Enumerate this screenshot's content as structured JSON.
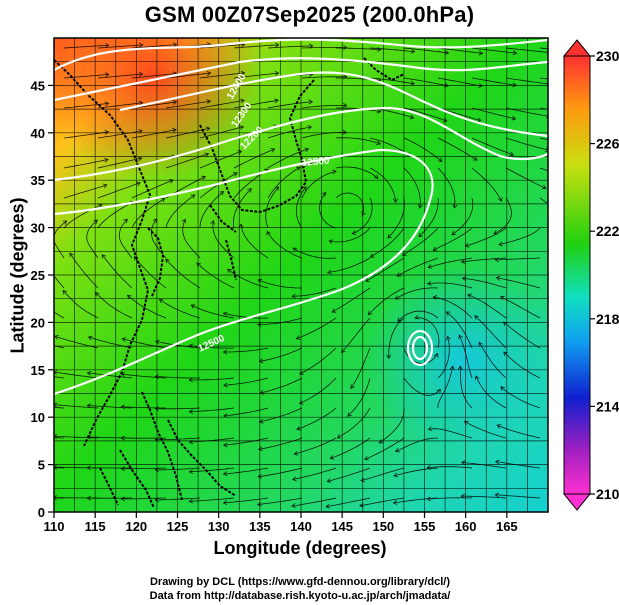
{
  "title": "GSM 00Z07Sep2025 (200.0hPa)",
  "axes": {
    "x_label": "Longitude (degrees)",
    "y_label": "Latitude  (degrees)",
    "x_ticks": [
      "110",
      "115",
      "120",
      "125",
      "130",
      "135",
      "140",
      "145",
      "150",
      "155",
      "160",
      "165"
    ],
    "y_ticks": [
      "0",
      "5",
      "10",
      "15",
      "20",
      "25",
      "30",
      "35",
      "40",
      "45"
    ],
    "x_range": [
      110,
      170
    ],
    "y_range": [
      0,
      50
    ]
  },
  "colorbar": {
    "ticks": [
      "230",
      "226",
      "222",
      "218",
      "214",
      "210"
    ],
    "range": [
      210,
      230
    ],
    "colors": [
      "#ff3030",
      "#ff9a10",
      "#c8e010",
      "#20d010",
      "#10e0c0",
      "#10a0f0",
      "#1020d0",
      "#a020c0",
      "#ff30d0"
    ]
  },
  "contours": {
    "labels": [
      "12500",
      "12400",
      "12300",
      "12200",
      "12500"
    ]
  },
  "credits": {
    "line1": "Drawing by DCL (https://www.gfd-dennou.org/library/dcl/)",
    "line2": "Data from http://database.rish.kyoto-u.ac.jp/arch/jmadata/"
  }
}
